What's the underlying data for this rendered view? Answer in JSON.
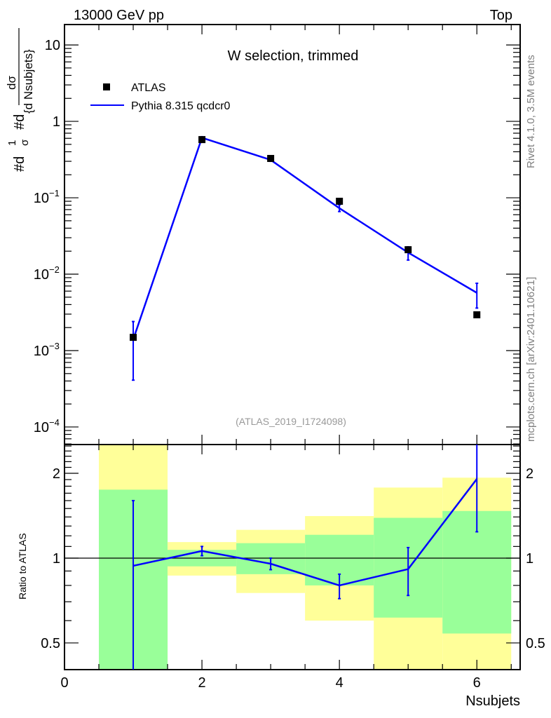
{
  "header": {
    "left": "13000 GeV pp",
    "right": "Top"
  },
  "side_texts": {
    "rivet": "Rivet 4.1.0,  3.5M events",
    "mcplots": "mcplots.cern.ch [arXiv:2401.10621]"
  },
  "chart_data": [
    {
      "type": "scatter",
      "title": "W selection, trimmed",
      "analysis_label": "(ATLAS_2019_I1724098)",
      "ylabel": "#d₁/σ #d dσ/{d Nsubjets}",
      "ylabel_parts": {
        "a": "#d",
        "frac_num": "1",
        "frac_den": "σ",
        "b": "#d",
        "num": "dσ",
        "den": "{d Nsubjets}"
      },
      "yscale": "log",
      "ylim": [
        5.89e-05,
        18.5
      ],
      "xlim": [
        0,
        6.63
      ],
      "yticks": [
        {
          "v": 10,
          "label": "10"
        },
        {
          "v": 1,
          "label": "1"
        },
        {
          "v": 0.1,
          "label": "10",
          "exp": "−1"
        },
        {
          "v": 0.01,
          "label": "10",
          "exp": "−2"
        },
        {
          "v": 0.001,
          "label": "10",
          "exp": "−3"
        },
        {
          "v": 0.0001,
          "label": "10",
          "exp": "−4"
        }
      ],
      "legend": {
        "placement": "top-left",
        "entries": [
          "ATLAS",
          "Pythia 8.315 qcdcr0"
        ]
      },
      "series": [
        {
          "name": "ATLAS",
          "style": "markers",
          "color": "#000000",
          "x": [
            1,
            2,
            3,
            4,
            5,
            6
          ],
          "y": [
            0.00149,
            0.577,
            0.327,
            0.09,
            0.0209,
            0.00294
          ]
        },
        {
          "name": "Pythia 8.315 qcdcr0",
          "style": "line",
          "color": "#0000ff",
          "x": [
            1,
            2,
            3,
            4,
            5,
            6
          ],
          "y": [
            0.0014,
            0.61,
            0.313,
            0.073,
            0.0192,
            0.0057
          ],
          "err_low": [
            0.00041,
            0.59,
            0.3,
            0.066,
            0.0153,
            0.0036
          ],
          "err_high": [
            0.0024,
            0.63,
            0.327,
            0.081,
            0.0228,
            0.0076
          ]
        }
      ]
    },
    {
      "type": "line",
      "ylabel": "Ratio to ATLAS",
      "xlabel": "Nsubjets",
      "yscale": "log",
      "ylim": [
        0.402,
        2.53
      ],
      "xlim": [
        0,
        6.63
      ],
      "xticks": [
        0,
        2,
        4,
        6
      ],
      "xtick_labels": [
        "0",
        "2",
        "4",
        "6"
      ],
      "yticks": [
        0.5,
        1,
        2
      ],
      "ytick_labels": [
        "0.5",
        "1",
        "2"
      ],
      "bands": {
        "bin_edges": [
          0.5,
          1.5,
          2.5,
          3.5,
          4.5,
          5.5,
          6.5
        ],
        "green_color": "#99ff99",
        "yellow_color": "#ffff99",
        "green_low": [
          0.402,
          0.935,
          0.877,
          0.8,
          0.615,
          0.54
        ],
        "green_high": [
          1.75,
          1.07,
          1.13,
          1.21,
          1.39,
          1.47
        ],
        "yellow_low": [
          0.402,
          0.867,
          0.752,
          0.6,
          0.402,
          0.402
        ],
        "yellow_high": [
          2.53,
          1.14,
          1.26,
          1.41,
          1.78,
          1.93
        ]
      },
      "series": [
        {
          "name": "Pythia 8.315 qcdcr0 / ATLAS",
          "color": "#0000ff",
          "x": [
            1,
            2,
            3,
            4,
            5,
            6
          ],
          "y": [
            0.939,
            1.06,
            0.955,
            0.8,
            0.914,
            1.91
          ],
          "err_low": [
            0.402,
            1.02,
            0.91,
            0.718,
            0.737,
            1.24
          ],
          "err_high": [
            1.6,
            1.1,
            1.0,
            0.877,
            1.09,
            2.53
          ]
        }
      ]
    }
  ]
}
